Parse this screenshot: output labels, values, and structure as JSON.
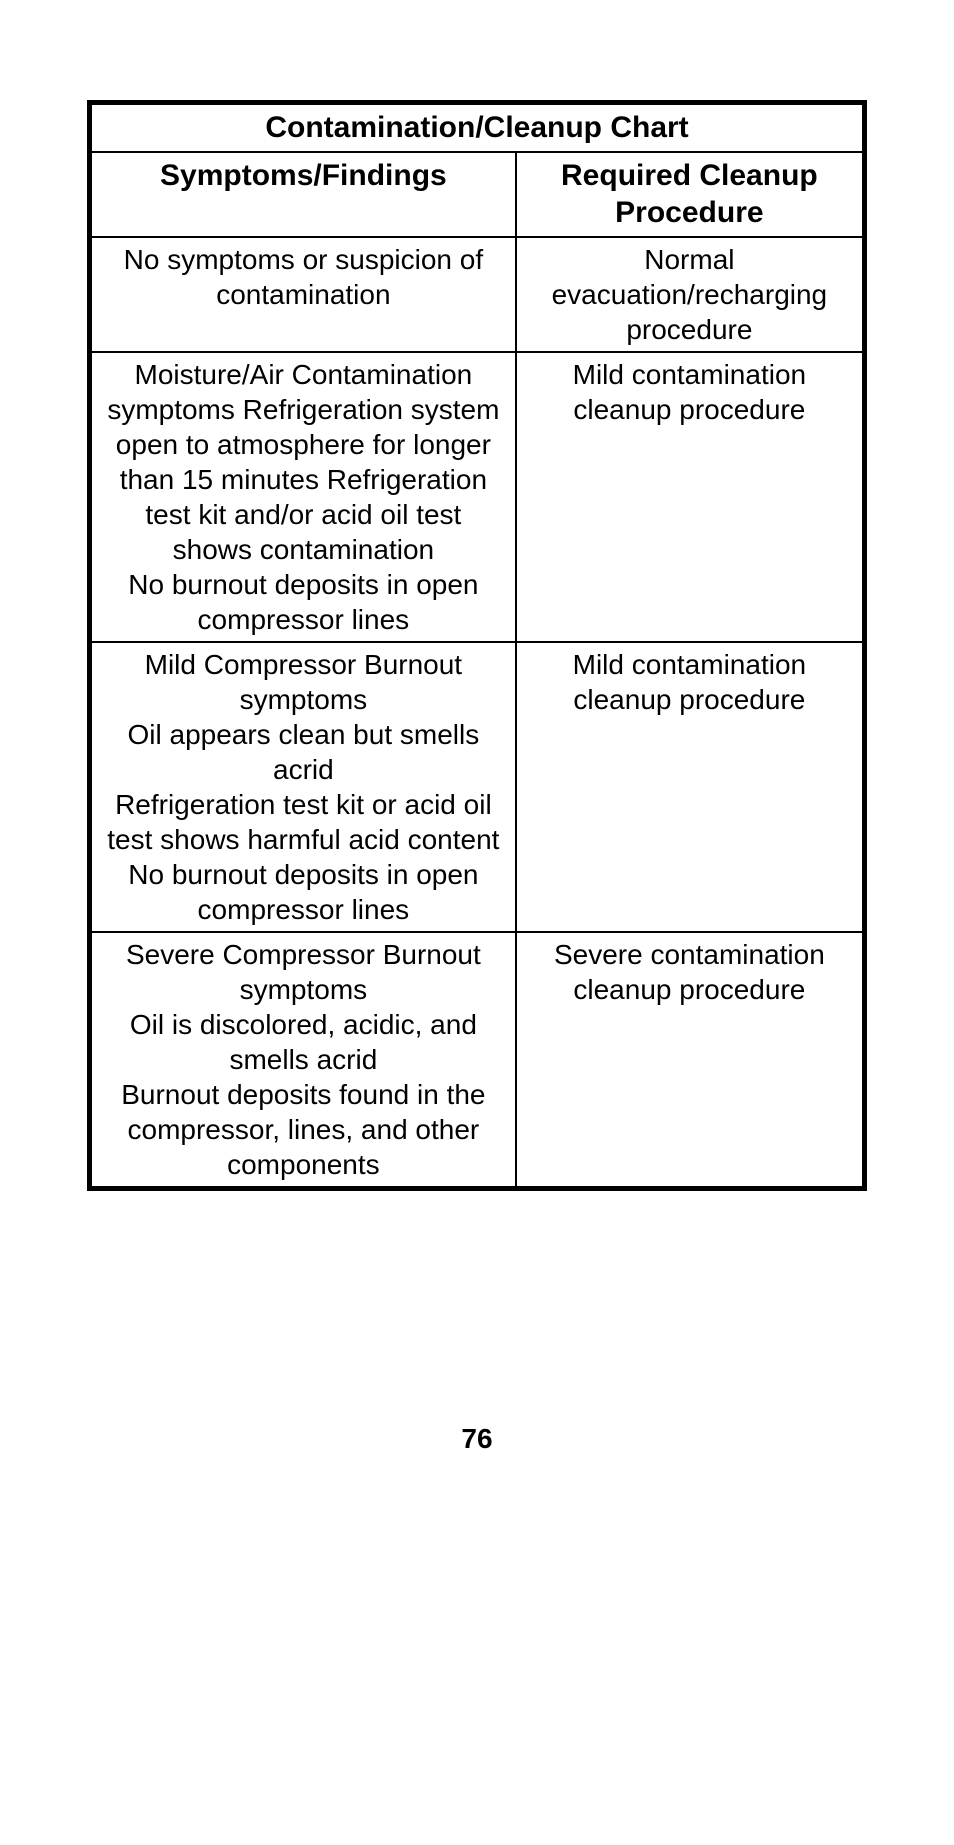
{
  "table": {
    "title": "Contamination/Cleanup Chart",
    "headers": {
      "col1": "Symptoms/Findings",
      "col2": "Required Cleanup Procedure"
    },
    "rows": [
      {
        "symptoms": "No symptoms or suspicion of contamination",
        "procedure": "Normal evacuation/recharging procedure"
      },
      {
        "symptoms": "Moisture/Air Contamination symptoms Refrigeration system open to atmosphere for longer than 15 minutes Refrigeration test kit and/or acid oil test shows contamination\nNo burnout deposits in open compressor lines",
        "procedure": "Mild contamination cleanup procedure"
      },
      {
        "symptoms": "Mild Compressor Burnout symptoms\nOil appears clean but smells acrid\nRefrigeration test kit or acid oil test shows harmful acid content\nNo burnout deposits in open compressor lines",
        "procedure": "Mild contamination cleanup procedure"
      },
      {
        "symptoms": "Severe Compressor Burnout symptoms\nOil is discolored, acidic, and smells acrid\nBurnout deposits found in the compressor, lines, and other components",
        "procedure": "Severe contamination cleanup procedure"
      }
    ]
  },
  "pageNumber": "76",
  "colors": {
    "background": "#ffffff",
    "border": "#000000",
    "text": "#000000"
  }
}
